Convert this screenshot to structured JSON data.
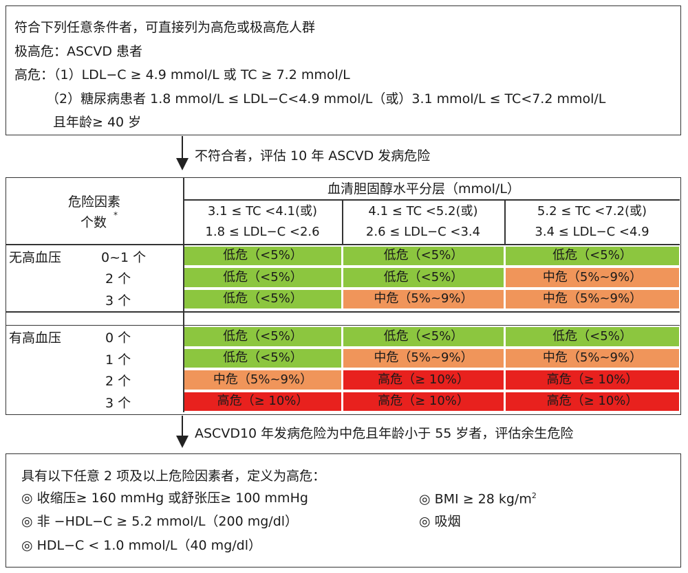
{
  "top_box": {
    "line1": "符合下列任意条件者，可直接列为高危或极高危人群",
    "line2": "极高危：ASCVD 患者",
    "line3": "高危：（1）LDL−C ≥ 4.9 mmol/L 或 TC ≥ 7.2 mmol/L",
    "line4": "（2）糖尿病患者 1.8 mmol/L ≤ LDL−C<4.9 mmol/L（或）3.1 mmol/L ≤ TC<7.2 mmol/L",
    "line5": "且年龄≥ 40 岁"
  },
  "arrow1_text": "不符合者，评估 10 年 ASCVD 发病危险",
  "arrow2_text": "ASCVD10 年发病危险为中危且年龄小于 55 岁者，评估余生危险",
  "table": {
    "factor_header_line1": "危险因素",
    "factor_header_line2": "个数",
    "factor_header_mark": "*",
    "chol_header": "血清胆固醇水平分层（mmol/L）",
    "col_headers": [
      {
        "tc": "3.1 ≤ TC <4.1(或)",
        "ldl": "1.8 ≤ LDL−C <2.6"
      },
      {
        "tc": "4.1 ≤ TC <5.2(或)",
        "ldl": "2.6 ≤ LDL−C <3.4"
      },
      {
        "tc": "5.2 ≤ TC <7.2(或)",
        "ldl": "3.4 ≤ LDL−C <4.9"
      }
    ],
    "groups": [
      {
        "label": "无高血压",
        "rows": [
          {
            "count": "0~1 个",
            "cells": [
              "低危（<5%）",
              "低危（<5%）",
              "低危（<5%）"
            ],
            "levels": [
              "low",
              "low",
              "low"
            ]
          },
          {
            "count": "2 个",
            "cells": [
              "低危（<5%）",
              "低危（<5%）",
              "中危（5%~9%）"
            ],
            "levels": [
              "low",
              "low",
              "mid"
            ]
          },
          {
            "count": "3 个",
            "cells": [
              "低危（<5%）",
              "中危（5%~9%）",
              "中危（5%~9%）"
            ],
            "levels": [
              "low",
              "mid",
              "mid"
            ]
          }
        ]
      },
      {
        "label": "有高血压",
        "rows": [
          {
            "count": "0 个",
            "cells": [
              "低危（<5%）",
              "低危（<5%）",
              "低危（<5%）"
            ],
            "levels": [
              "low",
              "low",
              "low"
            ]
          },
          {
            "count": "1 个",
            "cells": [
              "低危（<5%）",
              "中危（5%~9%）",
              "中危（5%~9%）"
            ],
            "levels": [
              "low",
              "mid",
              "mid"
            ]
          },
          {
            "count": "2 个",
            "cells": [
              "中危（5%~9%）",
              "高危（≥ 10%）",
              "高危（≥ 10%）"
            ],
            "levels": [
              "mid",
              "high",
              "high"
            ]
          },
          {
            "count": "3 个",
            "cells": [
              "高危（≥ 10%）",
              "高危（≥ 10%）",
              "高危（≥ 10%）"
            ],
            "levels": [
              "high",
              "high",
              "high"
            ]
          }
        ]
      }
    ],
    "colors": {
      "low": "#8cc63f",
      "mid": "#f0955a",
      "high": "#e8211e"
    }
  },
  "bottom_box": {
    "title": "具有以下任意 2 项及以上危险因素者，定义为高危：",
    "items_left": [
      "◎ 收缩压≥ 160 mmHg 或舒张压≥ 100 mmHg",
      "◎ 非 −HDL−C ≥ 5.2 mmol/L（200 mg/dl）",
      "◎ HDL−C < 1.0 mmol/L（40 mg/dl）"
    ],
    "bmi_text": "◎ BMI ≥ 28 kg/m",
    "bmi_sup": "2",
    "smoke_text": "◎ 吸烟"
  }
}
